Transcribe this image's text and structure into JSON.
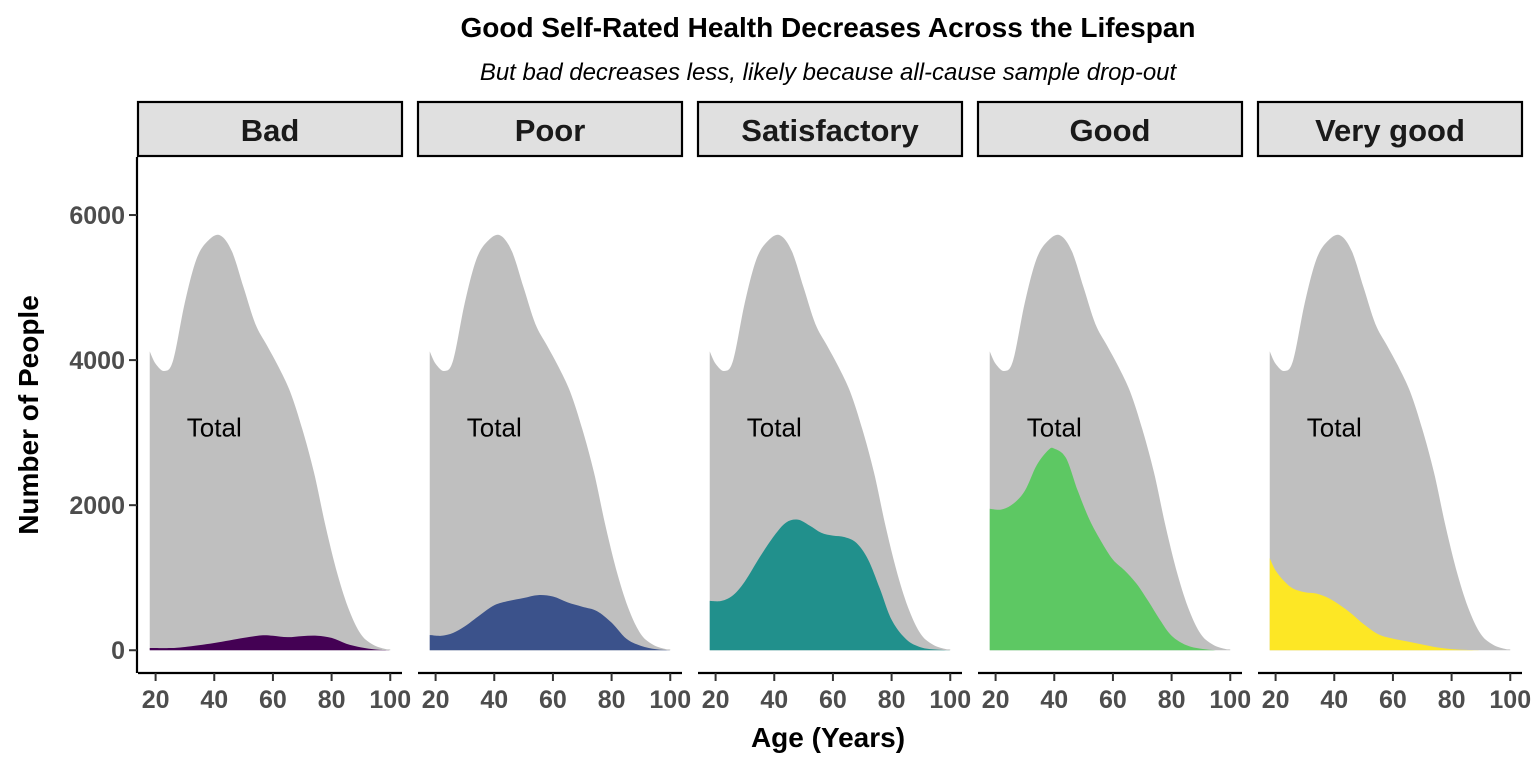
{
  "chart_data": {
    "type": "area",
    "title": "Good Self-Rated Health Decreases Across the Lifespan",
    "subtitle": "But bad decreases less, likely because all-cause sample drop-out",
    "xlabel": "Age (Years)",
    "ylabel": "Number of People",
    "xlim": [
      14,
      104
    ],
    "ylim": [
      -300,
      6800
    ],
    "x_ticks": [
      20,
      40,
      60,
      80,
      100
    ],
    "x_tick_labels": [
      "20",
      "40",
      "60",
      "80",
      "100"
    ],
    "y_ticks": [
      0,
      2000,
      4000,
      6000
    ],
    "y_tick_labels": [
      "0",
      "2000",
      "4000",
      "6000"
    ],
    "grid": false,
    "annotation": {
      "text": "Total",
      "x": 40,
      "y": 2950
    },
    "total": {
      "color": "#bfbfbf",
      "x": [
        18,
        20,
        23,
        26,
        30,
        34,
        38,
        42,
        46,
        50,
        54,
        58,
        62,
        66,
        70,
        74,
        78,
        82,
        86,
        90,
        94,
        98,
        100
      ],
      "y": [
        4120,
        3950,
        3850,
        4000,
        4800,
        5400,
        5650,
        5720,
        5500,
        5000,
        4500,
        4200,
        3900,
        3550,
        3050,
        2450,
        1700,
        1050,
        550,
        220,
        80,
        20,
        10
      ]
    },
    "panels": [
      {
        "label": "Bad",
        "color": "#440154",
        "x": [
          18,
          25,
          30,
          40,
          50,
          56,
          60,
          65,
          70,
          75,
          80,
          85,
          90,
          95,
          100
        ],
        "y": [
          30,
          30,
          45,
          100,
          170,
          205,
          200,
          180,
          195,
          200,
          170,
          90,
          40,
          10,
          0
        ]
      },
      {
        "label": "Poor",
        "color": "#3b528b",
        "x": [
          18,
          22,
          26,
          30,
          35,
          40,
          45,
          50,
          55,
          60,
          65,
          70,
          75,
          80,
          85,
          90,
          95,
          100
        ],
        "y": [
          210,
          200,
          240,
          330,
          480,
          620,
          680,
          720,
          760,
          740,
          660,
          600,
          540,
          380,
          160,
          60,
          15,
          0
        ]
      },
      {
        "label": "Satisfactory",
        "color": "#21908c",
        "x": [
          18,
          22,
          26,
          30,
          35,
          40,
          44,
          48,
          52,
          56,
          60,
          64,
          68,
          72,
          76,
          80,
          85,
          90,
          95,
          100
        ],
        "y": [
          680,
          680,
          760,
          950,
          1280,
          1580,
          1760,
          1800,
          1720,
          1620,
          1580,
          1560,
          1480,
          1250,
          850,
          420,
          150,
          40,
          10,
          0
        ]
      },
      {
        "label": "Good",
        "color": "#5dc863",
        "x": [
          18,
          22,
          26,
          30,
          34,
          38,
          40,
          44,
          48,
          52,
          56,
          60,
          64,
          68,
          72,
          76,
          80,
          85,
          90,
          95
        ],
        "y": [
          1950,
          1940,
          2020,
          2200,
          2550,
          2760,
          2780,
          2650,
          2200,
          1800,
          1500,
          1250,
          1100,
          920,
          680,
          420,
          200,
          70,
          20,
          0
        ]
      },
      {
        "label": "Very good",
        "color": "#fde725",
        "x": [
          18,
          20,
          23,
          26,
          30,
          34,
          38,
          42,
          46,
          50,
          55,
          60,
          65,
          70,
          75,
          80,
          85,
          90,
          93
        ],
        "y": [
          1270,
          1100,
          950,
          850,
          800,
          780,
          720,
          620,
          500,
          360,
          220,
          160,
          120,
          80,
          40,
          15,
          5,
          0,
          0
        ]
      }
    ]
  }
}
